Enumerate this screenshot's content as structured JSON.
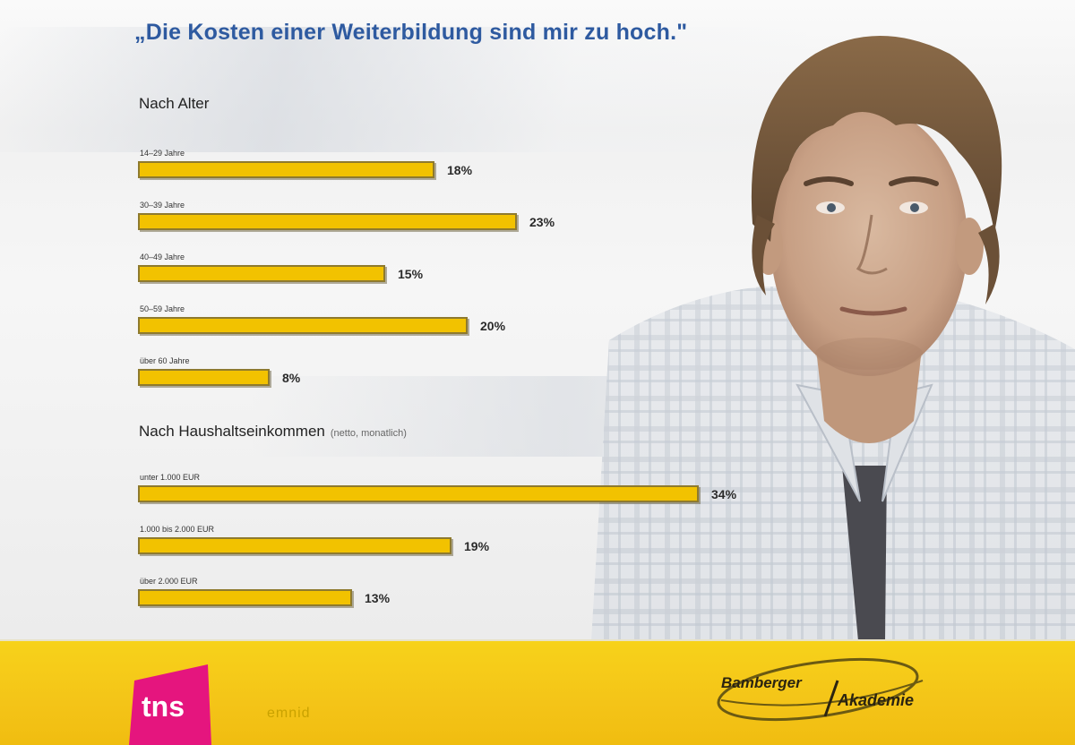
{
  "colors": {
    "bar": "#f2c200",
    "title": "#2e5aa0",
    "footer": "#f4c418",
    "brand_pink": "#e5157e"
  },
  "header": {
    "title": "„Die Kosten einer Weiterbildung sind mir zu hoch.\""
  },
  "chart_data": [
    {
      "type": "bar",
      "orientation": "horizontal",
      "section_title": "Nach Alter",
      "categories": [
        "14–29 Jahre",
        "30–39 Jahre",
        "40–49 Jahre",
        "50–59 Jahre",
        "über 60 Jahre"
      ],
      "values": [
        18,
        23,
        15,
        20,
        8
      ],
      "value_labels": [
        "18%",
        "23%",
        "15%",
        "20%",
        "8%"
      ],
      "unit": "%"
    },
    {
      "type": "bar",
      "orientation": "horizontal",
      "section_title": "Nach Haushaltseinkommen",
      "section_note": "(netto, monatlich)",
      "categories": [
        "unter 1.000 EUR",
        "1.000 bis 2.000 EUR",
        "über 2.000 EUR"
      ],
      "values": [
        34,
        19,
        13
      ],
      "value_labels": [
        "34%",
        "19%",
        "13%"
      ],
      "unit": "%"
    }
  ],
  "footer": {
    "brand_left": "tns",
    "brand_left_suffix": "emnid",
    "brand_right_1": "Bamberger",
    "brand_right_2": "Akademie"
  }
}
